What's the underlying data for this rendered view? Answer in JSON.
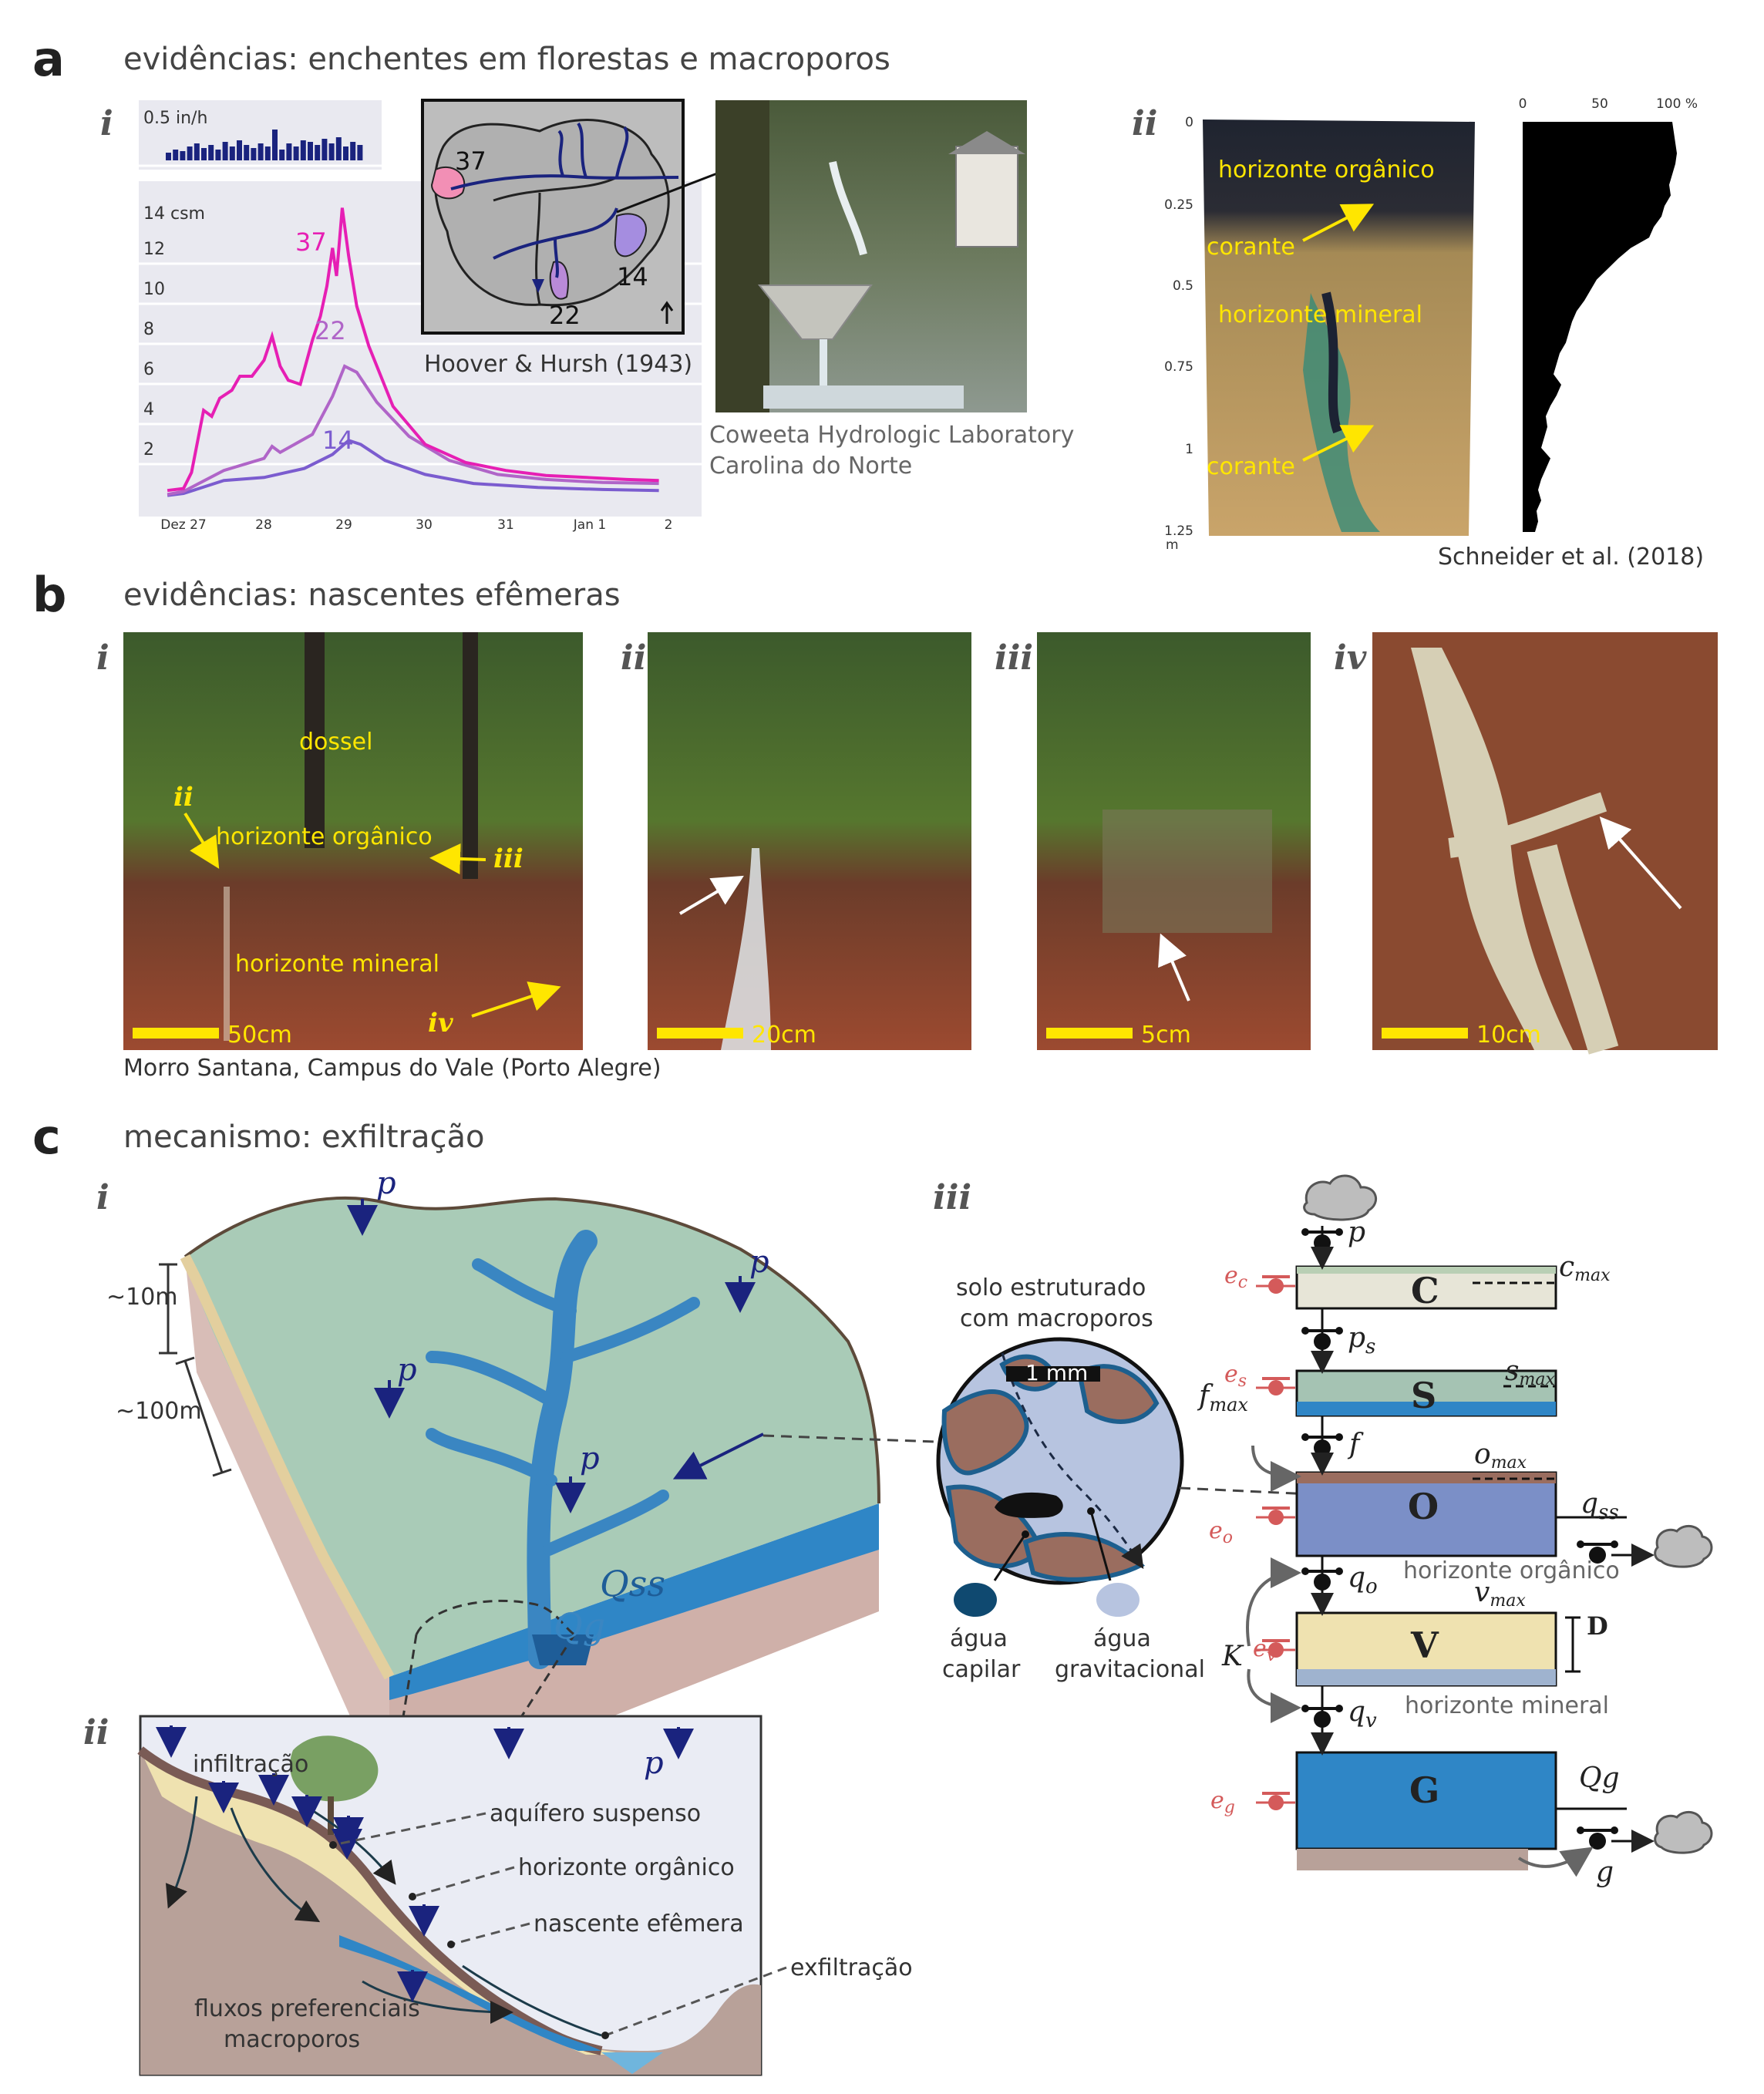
{
  "panel_a": {
    "letter": "a",
    "title": "evidências: enchentes em florestas e macroporos",
    "sub_i": "i",
    "sub_ii": "ii",
    "rain_label": "0.5 in/h",
    "flow_unit": "14 csm",
    "y_ticks": [
      "12",
      "10",
      "8",
      "6",
      "4",
      "2"
    ],
    "x_ticks": [
      "Dez 27",
      "28",
      "29",
      "30",
      "31",
      "Jan 1",
      "2"
    ],
    "series_labels": [
      "37",
      "22",
      "14"
    ],
    "map_labels": [
      "37",
      "14",
      "22"
    ],
    "map_citation": "Hoover & Hursh (1943)",
    "photo_caption_1": "Coweeta Hydrologic Laboratory",
    "photo_caption_2": "Carolina do Norte",
    "soil": {
      "depth_ticks": [
        "0",
        "0.25",
        "0.5",
        "0.75",
        "1",
        "1.25"
      ],
      "depth_unit": "m",
      "pct_ticks": [
        "0",
        "50",
        "100 %"
      ],
      "horizonte_organico": "horizonte orgânico",
      "horizonte_mineral": "horizonte mineral",
      "corante": "corante",
      "citation": "Schneider et al. (2018)"
    }
  },
  "panel_b": {
    "letter": "b",
    "title": "evidências: nascentes efêmeras",
    "subs": [
      "i",
      "ii",
      "iii",
      "iv"
    ],
    "dossel": "dossel",
    "horizonte_organico": "horizonte orgânico",
    "horizonte_mineral": "horizonte mineral",
    "scales": [
      "50cm",
      "20cm",
      "5cm",
      "10cm"
    ],
    "location": "Morro Santana, Campus do Vale (Porto Alegre)"
  },
  "panel_c": {
    "letter": "c",
    "title": "mecanismo: exfiltração",
    "sub_i": "i",
    "sub_ii": "ii",
    "sub_iii": "iii",
    "block": {
      "p": "p",
      "depth_10": "~10m",
      "depth_100": "~100m",
      "qss": "Qss",
      "qg": "Qg"
    },
    "cross": {
      "infiltracao": "infiltração",
      "aquifero": "aquífero suspenso",
      "horizonte_organico": "horizonte orgânico",
      "nascente": "nascente efêmera",
      "exfiltracao": "exfiltração",
      "fluxos_1": "fluxos preferenciais",
      "fluxos_2": "macroporos",
      "p": "p"
    },
    "soil_circle": {
      "title_1": "solo estruturado",
      "title_2": "com macroporos",
      "scale": "1 mm",
      "agua_capilar_1": "água",
      "agua_capilar_2": "capilar",
      "agua_grav_1": "água",
      "agua_grav_2": "gravitacional"
    },
    "model": {
      "boxes": [
        "C",
        "S",
        "O",
        "V",
        "G"
      ],
      "p": "p",
      "ps": "p",
      "ps_sub": "s",
      "f": "f",
      "fmax": "f",
      "fmax_sub": "max",
      "qo": "q",
      "qo_sub": "o",
      "qv": "q",
      "qv_sub": "v",
      "qss": "q",
      "qss_sub": "ss",
      "qg": "Qg",
      "g": "g",
      "K": "K",
      "D": "D",
      "ec": "e",
      "ec_sub": "c",
      "es": "e",
      "es_sub": "s",
      "eo": "e",
      "eo_sub": "o",
      "ev": "e",
      "ev_sub": "v",
      "eg": "e",
      "eg_sub": "g",
      "cmax": "c",
      "cmax_sub": "max",
      "smax": "s",
      "smax_sub": "max",
      "omax": "o",
      "omax_sub": "max",
      "vmax": "v",
      "vmax_sub": "max",
      "horizonte_organico": "horizonte orgânico",
      "horizonte_mineral": "horizonte mineral"
    }
  },
  "colors": {
    "flow_37": "#e61fb4",
    "flow_22": "#b065c8",
    "flow_14": "#7b5ccf",
    "rain": "#1a237e",
    "yellow": "#ffe600",
    "soil_red": "#d45a5a",
    "box_o": "#7b8fc7",
    "box_g": "#2f86c6",
    "box_v": "#efe2b0"
  }
}
